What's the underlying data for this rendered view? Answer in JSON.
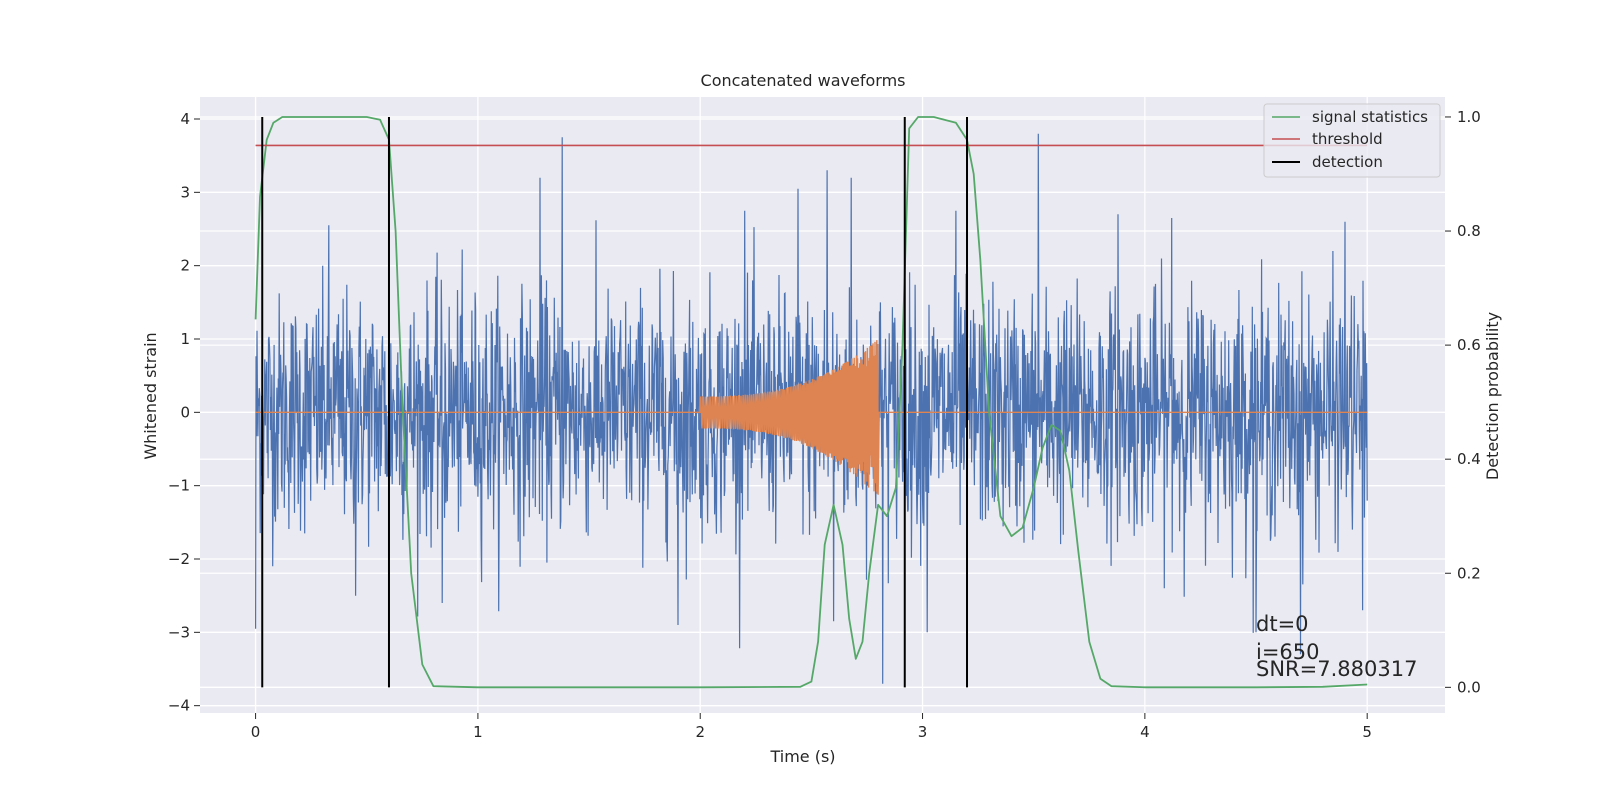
{
  "chart_data": {
    "type": "line",
    "title": "Concatenated waveforms",
    "xlabel": "Time (s)",
    "ylabel": "Whitened strain",
    "y2label": "Detection probability",
    "xlim": [
      -0.25,
      5.35
    ],
    "ylim": [
      -4.1,
      4.3
    ],
    "y2lim": [
      -0.045,
      1.035
    ],
    "xticks": [
      0,
      1,
      2,
      3,
      4,
      5
    ],
    "xtick_labels": [
      "0",
      "1",
      "2",
      "3",
      "4",
      "5"
    ],
    "yticks": [
      4,
      3,
      2,
      1,
      0,
      -1,
      -2,
      -3,
      -4
    ],
    "ytick_labels": [
      "4",
      "3",
      "2",
      "1",
      "0",
      "−1",
      "−2",
      "−3",
      "−4"
    ],
    "y2ticks": [
      1.0,
      0.8,
      0.6,
      0.4,
      0.2,
      0.0
    ],
    "y2tick_labels": [
      "1.0",
      "0.8",
      "0.6",
      "0.4",
      "0.2",
      "0.0"
    ],
    "grid": true,
    "legend_position": "top-right",
    "legend": [
      {
        "label": "signal statistics",
        "color": "#55a868"
      },
      {
        "label": "threshold",
        "color": "#c44e52"
      },
      {
        "label": "detection",
        "color": "#000000"
      }
    ],
    "noise": {
      "name": "whitened strain",
      "color": "#4c72b0",
      "x_range": [
        0,
        5
      ],
      "typical_amplitude": 0.8,
      "max": 3.8,
      "min": -3.7,
      "peaks": [
        {
          "x": 0.0,
          "y": -2.95
        },
        {
          "x": 0.33,
          "y": 2.55
        },
        {
          "x": 0.45,
          "y": -2.5
        },
        {
          "x": 0.84,
          "y": -2.6
        },
        {
          "x": 1.38,
          "y": 3.75
        },
        {
          "x": 1.28,
          "y": 3.2
        },
        {
          "x": 1.9,
          "y": -2.9
        },
        {
          "x": 2.2,
          "y": 2.75
        },
        {
          "x": 2.44,
          "y": 3.05
        },
        {
          "x": 2.57,
          "y": 3.3
        },
        {
          "x": 2.6,
          "y": -2.85
        },
        {
          "x": 2.68,
          "y": 3.2
        },
        {
          "x": 2.82,
          "y": -3.7
        },
        {
          "x": 3.02,
          "y": -3.0
        },
        {
          "x": 3.15,
          "y": 2.75
        },
        {
          "x": 3.52,
          "y": 3.8
        },
        {
          "x": 3.88,
          "y": 2.7
        },
        {
          "x": 4.12,
          "y": 2.65
        },
        {
          "x": 4.5,
          "y": -3.0
        },
        {
          "x": 4.7,
          "y": -3.3
        },
        {
          "x": 4.9,
          "y": 2.6
        },
        {
          "x": 4.98,
          "y": -2.7
        }
      ]
    },
    "chirp": {
      "name": "injected waveform",
      "color": "#dd8452",
      "t_start": 2.0,
      "t_merge": 2.8,
      "amplitude_start": 0.22,
      "amplitude_peak": 1.0,
      "amplitude_trough": -1.15
    },
    "signal_statistics": {
      "name": "signal statistics",
      "color": "#55a868",
      "x": [
        0.0,
        0.02,
        0.05,
        0.08,
        0.12,
        0.2,
        0.5,
        0.56,
        0.6,
        0.63,
        0.66,
        0.7,
        0.75,
        0.8,
        1.0,
        2.0,
        2.45,
        2.5,
        2.53,
        2.56,
        2.6,
        2.64,
        2.67,
        2.7,
        2.73,
        2.76,
        2.8,
        2.84,
        2.88,
        2.91,
        2.94,
        2.98,
        3.05,
        3.15,
        3.2,
        3.23,
        3.26,
        3.3,
        3.35,
        3.4,
        3.45,
        3.5,
        3.54,
        3.58,
        3.62,
        3.66,
        3.7,
        3.75,
        3.8,
        3.85,
        4.0,
        4.5,
        4.8,
        5.0
      ],
      "y": [
        0.645,
        0.86,
        0.96,
        0.99,
        1.0,
        1.0,
        1.0,
        0.995,
        0.96,
        0.8,
        0.5,
        0.2,
        0.04,
        0.002,
        0.0,
        0.0,
        0.001,
        0.01,
        0.08,
        0.25,
        0.32,
        0.25,
        0.12,
        0.05,
        0.08,
        0.2,
        0.32,
        0.3,
        0.35,
        0.6,
        0.98,
        1.0,
        1.0,
        0.99,
        0.96,
        0.9,
        0.75,
        0.48,
        0.3,
        0.265,
        0.28,
        0.35,
        0.42,
        0.46,
        0.45,
        0.38,
        0.24,
        0.08,
        0.015,
        0.002,
        0.0,
        0.0,
        0.001,
        0.005
      ]
    },
    "threshold": {
      "name": "threshold",
      "color": "#c44e52",
      "y": 0.95,
      "x_range": [
        0,
        5
      ]
    },
    "detections": {
      "name": "detection",
      "color": "#000000",
      "x": [
        0.03,
        0.6,
        2.92,
        3.2
      ]
    },
    "annotations": [
      "dt=0",
      "i=650",
      "SNR=7.880317"
    ]
  }
}
